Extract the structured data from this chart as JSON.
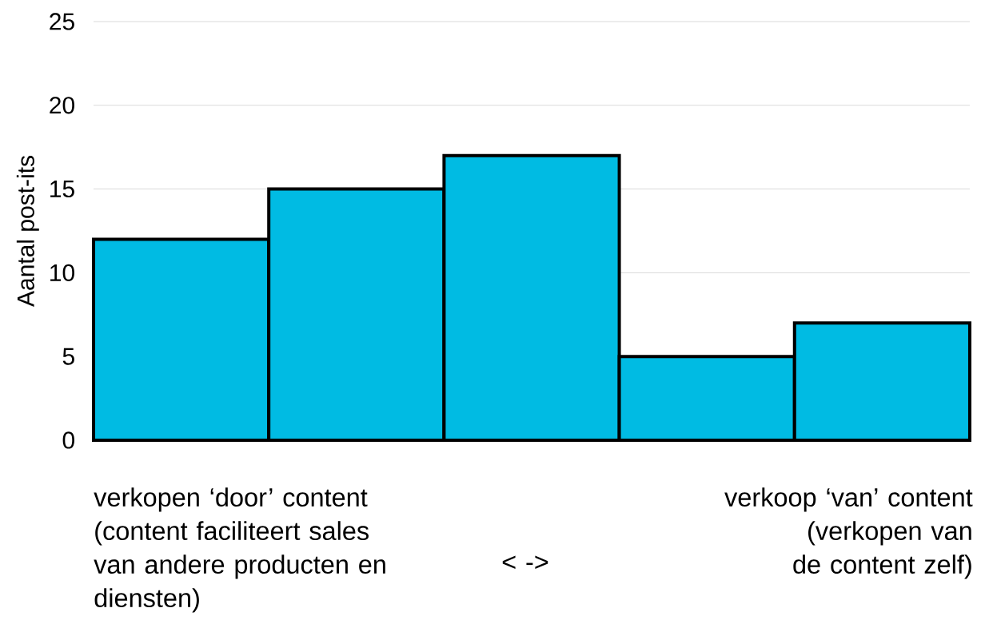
{
  "chart_data": {
    "type": "bar",
    "ylabel": "Aantal post-its",
    "categories": [
      null,
      null,
      null,
      null,
      null
    ],
    "values": [
      12,
      15,
      17,
      5,
      7
    ],
    "color": "#00bbe3",
    "ylim": [
      0,
      25
    ],
    "yticks": [
      0,
      5,
      10,
      15,
      20,
      25
    ],
    "grid": "y",
    "tick_labels": "y",
    "annotations": [
      "verkopen ‘door’ content (content faciliteert sales van andere producten en diensten)",
      "< ->",
      "verkoop ‘van’ content (verkopen van de content zelf)"
    ]
  }
}
